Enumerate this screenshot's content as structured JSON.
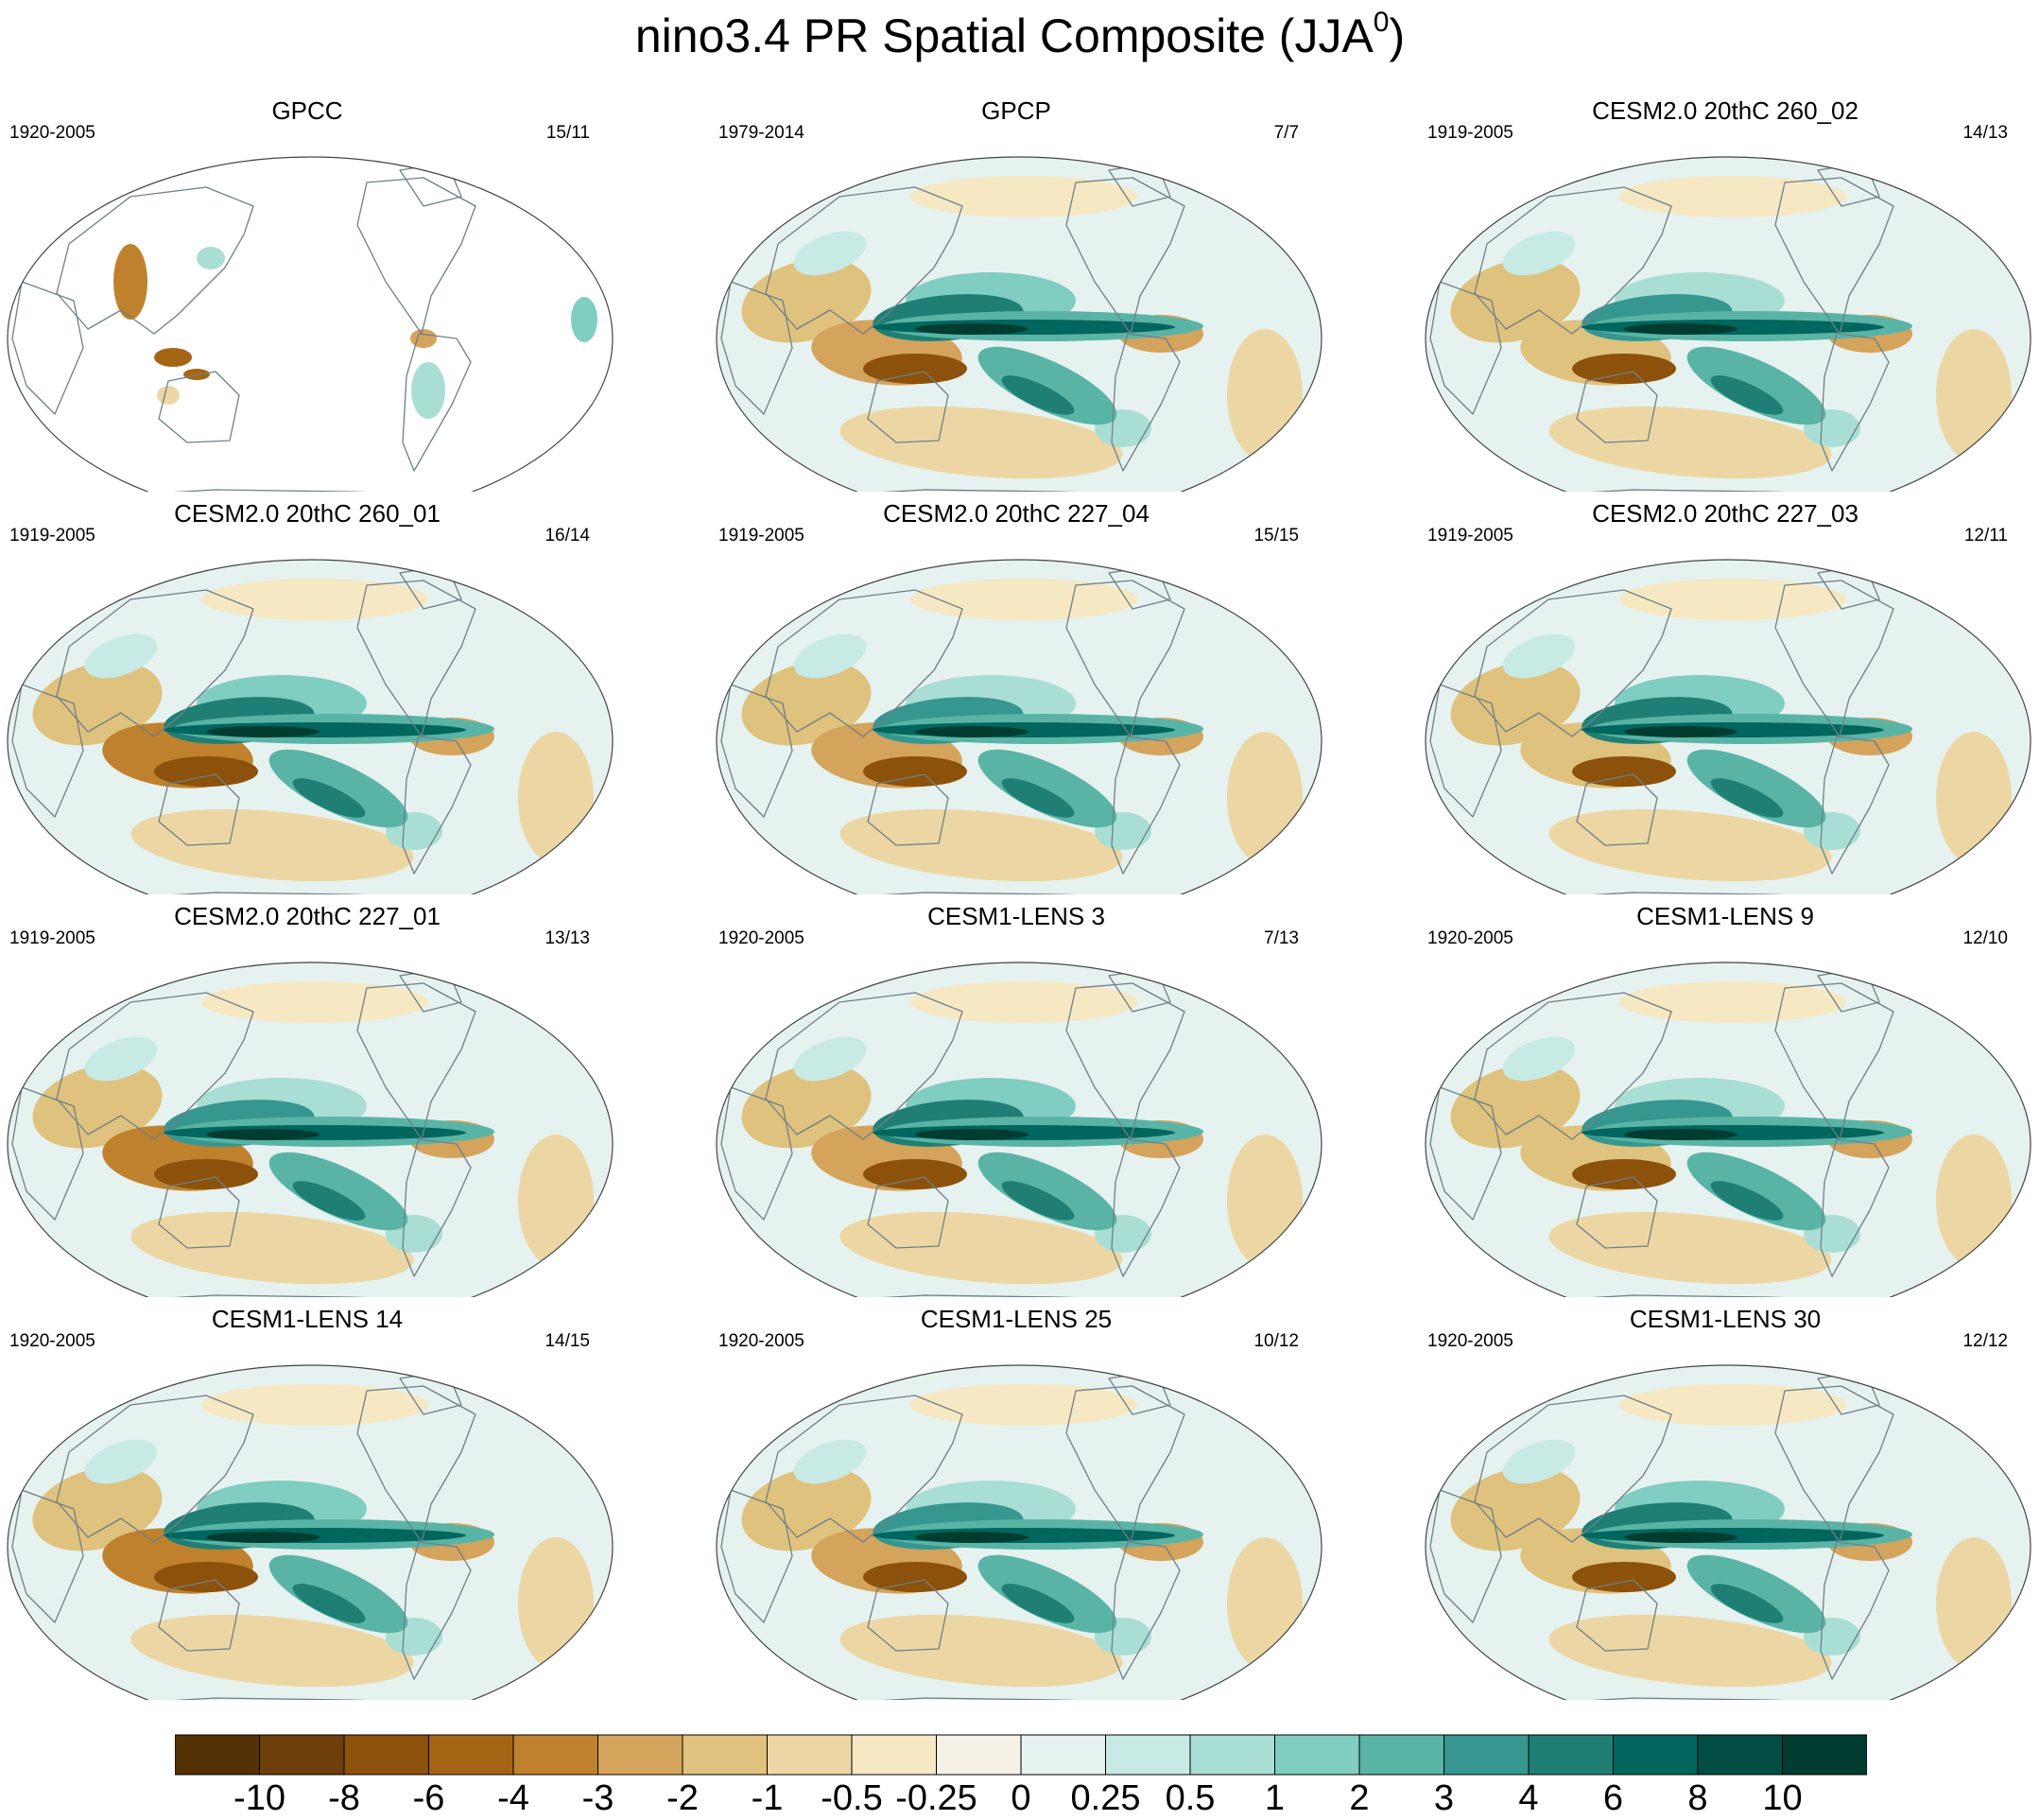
{
  "title": {
    "main": "nino3.4 PR Spatial Composite (JJA",
    "superscript": "0",
    "close": ")"
  },
  "panels": [
    {
      "title": "GPCC",
      "period": "1920-2005",
      "count": "15/11",
      "land_only": true
    },
    {
      "title": "GPCP",
      "period": "1979-2014",
      "count": "7/7"
    },
    {
      "title": "CESM2.0 20thC 260_02",
      "period": "1919-2005",
      "count": "14/13"
    },
    {
      "title": "CESM2.0 20thC 260_01",
      "period": "1919-2005",
      "count": "16/14"
    },
    {
      "title": "CESM2.0 20thC 227_04",
      "period": "1919-2005",
      "count": "15/15"
    },
    {
      "title": "CESM2.0 20thC 227_03",
      "period": "1919-2005",
      "count": "12/11"
    },
    {
      "title": "CESM2.0 20thC 227_01",
      "period": "1919-2005",
      "count": "13/13"
    },
    {
      "title": "CESM1-LENS 3",
      "period": "1920-2005",
      "count": "7/13"
    },
    {
      "title": "CESM1-LENS 9",
      "period": "1920-2005",
      "count": "12/10"
    },
    {
      "title": "CESM1-LENS 14",
      "period": "1920-2005",
      "count": "14/15"
    },
    {
      "title": "CESM1-LENS 25",
      "period": "1920-2005",
      "count": "10/12"
    },
    {
      "title": "CESM1-LENS 30",
      "period": "1920-2005",
      "count": "12/12"
    }
  ],
  "colorbar": {
    "labels": [
      "-10",
      "-8",
      "-6",
      "-4",
      "-3",
      "-2",
      "-1",
      "-0.5",
      "-0.25",
      "0",
      "0.25",
      "0.5",
      "1",
      "2",
      "3",
      "4",
      "6",
      "8",
      "10"
    ],
    "colors": [
      "#543005",
      "#6e3f0a",
      "#8c510a",
      "#a66515",
      "#bf812d",
      "#d4a35c",
      "#dfc27d",
      "#ecd7a4",
      "#f6e8c3",
      "#f5f1e6",
      "#e6f2ef",
      "#c7eae5",
      "#a9ded5",
      "#80cdc1",
      "#5ab4a6",
      "#35978f",
      "#1f7f75",
      "#01665e",
      "#024e44",
      "#003c30"
    ]
  }
}
